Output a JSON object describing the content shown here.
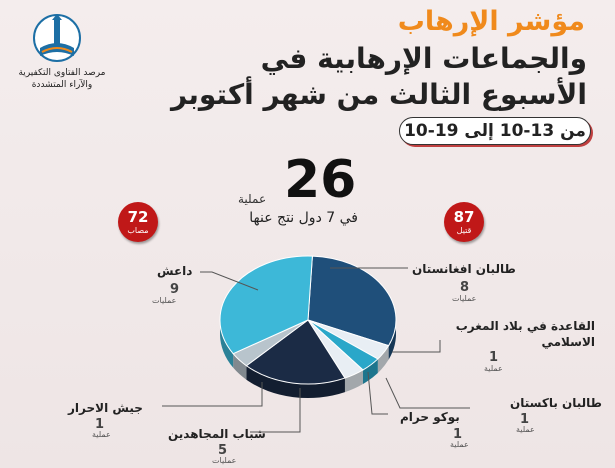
{
  "header": {
    "title_line1": "مؤشر الإرهاب",
    "title_line2": "والجماعات الإرهابية في",
    "title_line3": "الأسبوع الثالث من شهر أكتوبر",
    "date_range": "من 13-10 إلى 19-10"
  },
  "institution": {
    "line1": "مرصد الفتاوى التكفيرية",
    "line2": "والآراء المتشددة"
  },
  "summary": {
    "total_operations": "26",
    "operations_label": "عملية",
    "countries_text": "في 7 دول نتج عنها"
  },
  "badges": {
    "killed": {
      "value": "87",
      "label": "قتيل"
    },
    "injured": {
      "value": "72",
      "label": "مصاب"
    }
  },
  "unit_label": "عمليات",
  "unit_label_single": "عملية",
  "colors": {
    "title_orange": "#f08a1c",
    "badge_red": "#c01818",
    "slice_light_blue": "#3db8d8",
    "slice_dark_navy": "#1b2b45",
    "slice_mid_blue": "#1f4f7a",
    "slice_white": "#e8eef4",
    "slice_cyan": "#2aa7c9",
    "slice_gray": "#b8c4cc"
  },
  "chart_data": {
    "type": "pie",
    "title": "",
    "slices": [
      {
        "label": "طالبان افغانستان",
        "value": 8,
        "color": "#1f4f7a"
      },
      {
        "label": "القاعدة في بلاد المغرب الاسلامي",
        "value": 1,
        "color": "#e8eef4"
      },
      {
        "label": "طالبان باكستان",
        "value": 1,
        "color": "#2aa7c9"
      },
      {
        "label": "بوكو حرام",
        "value": 1,
        "color": "#e8eef4"
      },
      {
        "label": "شباب المجاهدين",
        "value": 5,
        "color": "#1b2b45"
      },
      {
        "label": "جيش الاحرار",
        "value": 1,
        "color": "#b8c4cc"
      },
      {
        "label": "داعش",
        "value": 9,
        "color": "#3db8d8"
      }
    ]
  }
}
